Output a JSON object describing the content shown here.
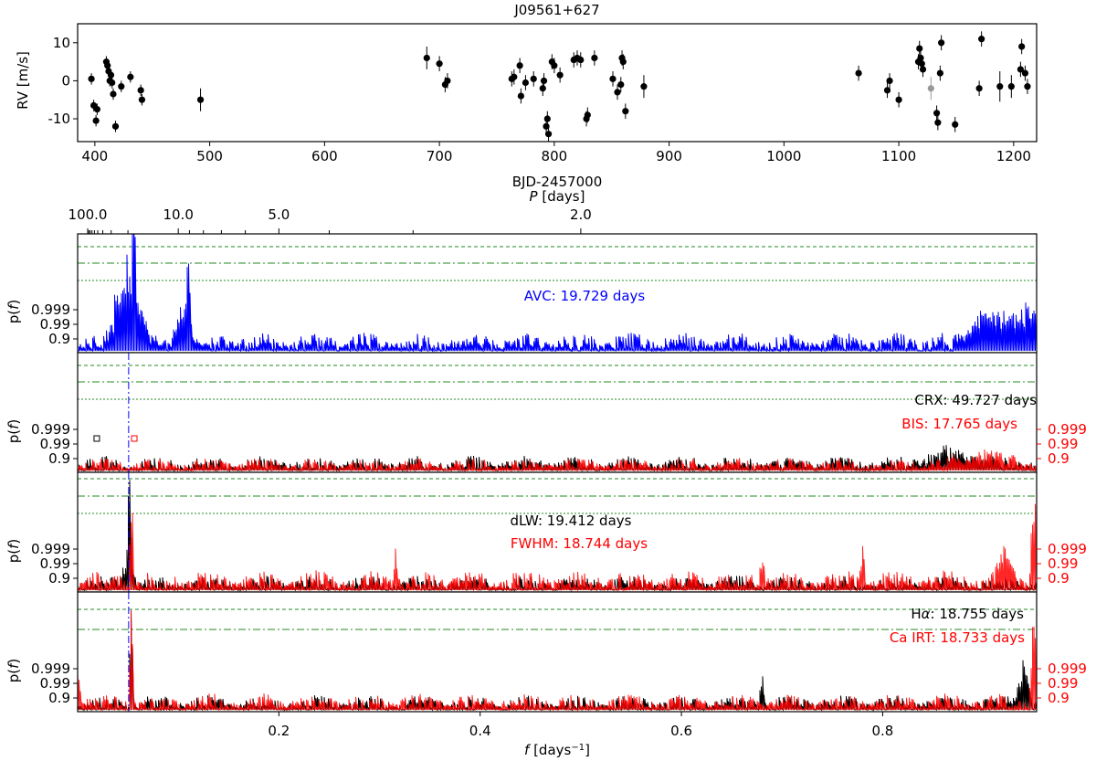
{
  "chart_data": [
    {
      "type": "scatter",
      "title": "J09561+627",
      "xlabel": "BJD-2457000",
      "ylabel": "RV [m/s]",
      "xlim": [
        385,
        1220
      ],
      "ylim": [
        -16,
        15
      ],
      "xticks": [
        400,
        500,
        600,
        700,
        800,
        900,
        1000,
        1100,
        1200
      ],
      "yticks": [
        10,
        0,
        -10
      ],
      "points": [
        [
          397,
          0.5,
          1.5
        ],
        [
          399,
          -6.5,
          1.5
        ],
        [
          401,
          -10.5,
          1.5
        ],
        [
          402,
          -7.5,
          1.5
        ],
        [
          410,
          5,
          1.5
        ],
        [
          411,
          4,
          1.5
        ],
        [
          412,
          2.5,
          1.5
        ],
        [
          413,
          0,
          1.5
        ],
        [
          414,
          1.5,
          1.5
        ],
        [
          415,
          -0.5,
          1.5
        ],
        [
          416,
          -3.5,
          1.5
        ],
        [
          418,
          -12,
          1.5
        ],
        [
          423,
          -1.5,
          1.5
        ],
        [
          431,
          1,
          1.5
        ],
        [
          440,
          -2.5,
          1.5
        ],
        [
          441,
          -5,
          1.5
        ],
        [
          492,
          -5,
          3
        ],
        [
          689,
          6,
          3
        ],
        [
          700,
          4.5,
          2
        ],
        [
          705,
          -1,
          2
        ],
        [
          707,
          0,
          2
        ],
        [
          763,
          0.5,
          2
        ],
        [
          765,
          1,
          2
        ],
        [
          770,
          4,
          2
        ],
        [
          771,
          -4,
          2
        ],
        [
          775,
          -0.5,
          2
        ],
        [
          782,
          0.5,
          2
        ],
        [
          790,
          -2,
          2
        ],
        [
          791,
          0,
          2
        ],
        [
          793,
          -12,
          2
        ],
        [
          794,
          -10,
          2
        ],
        [
          795,
          -14,
          2
        ],
        [
          798,
          5,
          2
        ],
        [
          800,
          4,
          2
        ],
        [
          805,
          1.5,
          2
        ],
        [
          817,
          5.5,
          2
        ],
        [
          820,
          6,
          2
        ],
        [
          823,
          5.5,
          2
        ],
        [
          828,
          -10,
          2
        ],
        [
          829,
          -9,
          2
        ],
        [
          835,
          6,
          2
        ],
        [
          851,
          0.5,
          2
        ],
        [
          855,
          -3,
          2
        ],
        [
          858,
          -1,
          2
        ],
        [
          859,
          6,
          2
        ],
        [
          860,
          5,
          2
        ],
        [
          862,
          -8,
          2
        ],
        [
          878,
          -1.5,
          3
        ],
        [
          1065,
          2,
          2
        ],
        [
          1090,
          -2.5,
          2
        ],
        [
          1092,
          0,
          2
        ],
        [
          1100,
          -5,
          2
        ],
        [
          1117,
          5,
          2
        ],
        [
          1118,
          8.5,
          2
        ],
        [
          1119,
          6,
          2
        ],
        [
          1120,
          4.5,
          2
        ],
        [
          1121,
          3,
          2
        ],
        [
          1133,
          -8.5,
          2
        ],
        [
          1134,
          -11,
          2
        ],
        [
          1136,
          2,
          2
        ],
        [
          1137,
          10,
          2
        ],
        [
          1149,
          -11.5,
          2
        ],
        [
          1170,
          -2,
          2
        ],
        [
          1172,
          11,
          2
        ],
        [
          1188,
          -1.5,
          4
        ],
        [
          1198,
          -1.5,
          3
        ],
        [
          1206,
          3,
          2
        ],
        [
          1207,
          9,
          2
        ],
        [
          1210,
          2,
          2
        ],
        [
          1212,
          -1.5,
          2
        ]
      ],
      "highlight_point": [
        1128,
        -2,
        3
      ]
    },
    {
      "type": "line",
      "series": [
        {
          "name": "AVC: 19.729 days",
          "color": "#0000ff",
          "peaks": [
            [
              0.0507,
              1.8,
              60
            ],
            [
              0.1098,
              1.8,
              60
            ],
            [
              0.945,
              0.95,
              35
            ]
          ]
        }
      ],
      "xlabel": "",
      "ylabel": "p(f)",
      "left_ticks": [
        "0.999",
        "0.99",
        "0.9"
      ],
      "top_xlabel": "P [days]",
      "top_ticks": [
        "100.0",
        "10.0",
        "5.0",
        "2.0"
      ],
      "annotation": "AVC: 19.729 days"
    },
    {
      "type": "line",
      "series": [
        {
          "name": "CRX: 49.727 days",
          "color": "#000000"
        },
        {
          "name": "BIS: 17.765 days",
          "color": "#ff0000"
        }
      ],
      "ylabel": "p(f)",
      "left_ticks": [
        "0.999",
        "0.99",
        "0.9"
      ],
      "right_ticks": [
        "0.999",
        "0.99",
        "0.9"
      ],
      "annotations": [
        "CRX: 49.727 days",
        "BIS: 17.765 days"
      ]
    },
    {
      "type": "line",
      "series": [
        {
          "name": "dLW: 19.412 days",
          "color": "#000000"
        },
        {
          "name": "FWHM: 18.744 days",
          "color": "#ff0000"
        }
      ],
      "ylabel": "p(f)",
      "left_ticks": [
        "0.999",
        "0.99",
        "0.9"
      ],
      "right_ticks": [
        "0.999",
        "0.99",
        "0.9"
      ],
      "annotations": [
        "dLW: 19.412 days",
        "FWHM: 18.744 days"
      ]
    },
    {
      "type": "line",
      "series": [
        {
          "name": "Hα: 18.755 days",
          "color": "#000000"
        },
        {
          "name": "Ca IRT: 18.733 days",
          "color": "#ff0000"
        }
      ],
      "ylabel": "p(f)",
      "left_ticks": [
        "0.999",
        "0.99",
        "0.9"
      ],
      "right_ticks": [
        "0.999",
        "0.99",
        "0.9"
      ],
      "xlabel": "f [days⁻¹]",
      "xlim": [
        0.0,
        0.95
      ],
      "xticks": [
        "0.2",
        "0.4",
        "0.6",
        "0.8"
      ],
      "annotations": [
        "Hα: 18.755 days",
        "Ca IRT: 18.733 days"
      ]
    }
  ],
  "labels": {
    "title": "J09561+627",
    "rv_ylabel": "RV [m/s]",
    "rv_xlabel": "BJD-2457000",
    "period_label": "P [days]",
    "freq_label": "f [days⁻¹]",
    "pf": "p(f)",
    "avc": "AVC: 19.729 days",
    "crx": "CRX: 49.727 days",
    "bis": "BIS: 17.765 days",
    "dlw": "dLW: 19.412 days",
    "fwhm": "FWHM: 18.744 days",
    "ha": "Hα: 18.755 days",
    "cairt": "Ca IRT: 18.733 days"
  },
  "colors": {
    "blue": "#0000ff",
    "red": "#ff0000",
    "green": "#228b22",
    "black": "#000000",
    "grey": "#999999"
  }
}
